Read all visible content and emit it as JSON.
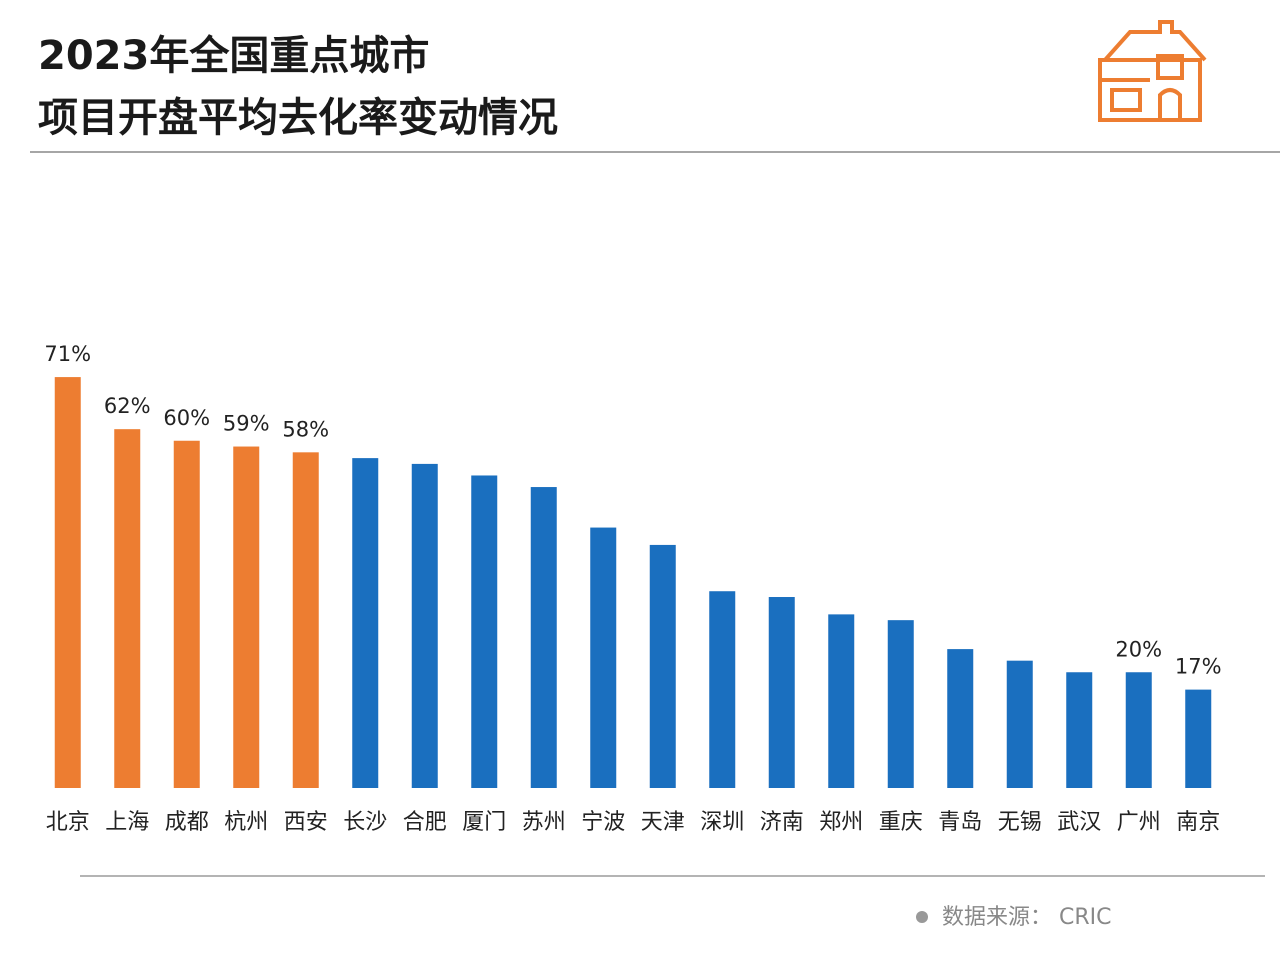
{
  "chart_data": {
    "type": "bar",
    "title_lines": [
      "2023年全国重点城市",
      "项目开盘平均去化率变动情况"
    ],
    "categories": [
      "北京",
      "上海",
      "成都",
      "杭州",
      "西安",
      "长沙",
      "合肥",
      "厦门",
      "苏州",
      "宁波",
      "天津",
      "深圳",
      "济南",
      "郑州",
      "重庆",
      "青岛",
      "无锡",
      "武汉",
      "广州",
      "南京"
    ],
    "values": [
      71,
      62,
      60,
      59,
      58,
      57,
      56,
      54,
      52,
      45,
      42,
      34,
      33,
      30,
      29,
      24,
      22,
      20,
      20,
      17
    ],
    "value_labels": [
      "71%",
      "62%",
      "60%",
      "59%",
      "58%",
      null,
      null,
      null,
      null,
      null,
      null,
      null,
      null,
      null,
      null,
      null,
      null,
      null,
      "20%",
      "17%"
    ],
    "colors": [
      "#ed7d31",
      "#ed7d31",
      "#ed7d31",
      "#ed7d31",
      "#ed7d31",
      "#1a6fbf",
      "#1a6fbf",
      "#1a6fbf",
      "#1a6fbf",
      "#1a6fbf",
      "#1a6fbf",
      "#1a6fbf",
      "#1a6fbf",
      "#1a6fbf",
      "#1a6fbf",
      "#1a6fbf",
      "#1a6fbf",
      "#1a6fbf",
      "#1a6fbf",
      "#1a6fbf"
    ],
    "ylim": [
      0,
      80
    ],
    "source": "数据来源：  CRIC"
  }
}
